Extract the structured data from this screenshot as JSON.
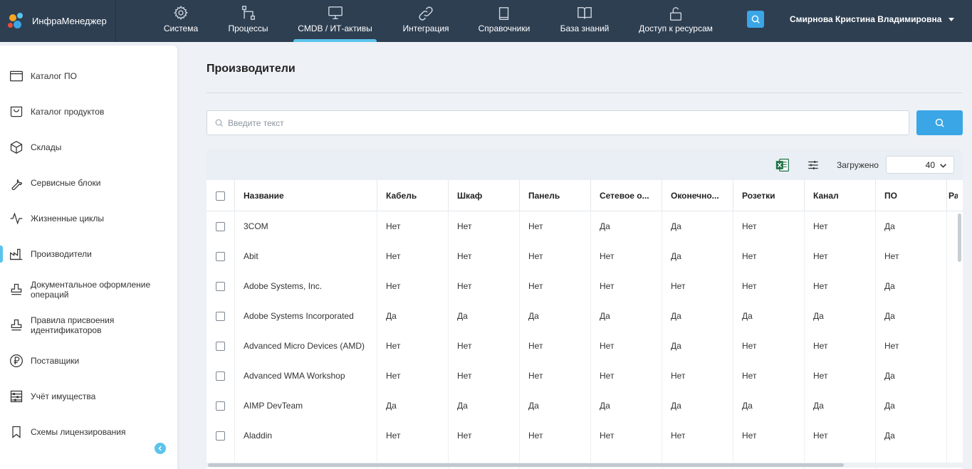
{
  "app": {
    "name": "ИнфраМенеджер"
  },
  "nav": {
    "items": [
      {
        "label": "Система",
        "icon": "gear-icon"
      },
      {
        "label": "Процессы",
        "icon": "process-icon"
      },
      {
        "label": "CMDB / ИТ-активы",
        "icon": "monitor-icon",
        "active": true
      },
      {
        "label": "Интеграция",
        "icon": "link-icon"
      },
      {
        "label": "Справочники",
        "icon": "book-icon"
      },
      {
        "label": "База знаний",
        "icon": "open-book-icon"
      },
      {
        "label": "Доступ к ресурсам",
        "icon": "unlock-icon"
      }
    ],
    "user": "Смирнова Кристина Владимировна"
  },
  "sidebar": {
    "items": [
      {
        "label": "Каталог ПО",
        "icon": "window-icon"
      },
      {
        "label": "Каталог продуктов",
        "icon": "basket-icon"
      },
      {
        "label": "Склады",
        "icon": "cube-icon"
      },
      {
        "label": "Сервисные блоки",
        "icon": "wrench-icon"
      },
      {
        "label": "Жизненные циклы",
        "icon": "pulse-icon"
      },
      {
        "label": "Производители",
        "icon": "factory-icon",
        "active": true
      },
      {
        "label": "Документальное оформление\nопераций",
        "icon": "stamp-icon"
      },
      {
        "label": "Правила присвоения\nидентификаторов",
        "icon": "stamp-icon"
      },
      {
        "label": "Поставщики",
        "icon": "ruble-icon"
      },
      {
        "label": "Учёт имущества",
        "icon": "abacus-icon"
      },
      {
        "label": "Схемы лицензирования",
        "icon": "bookmark-icon"
      }
    ]
  },
  "main": {
    "title": "Производители",
    "search": {
      "placeholder": "Введите текст",
      "value": ""
    },
    "toolbar": {
      "loaded_label": "Загружено",
      "loaded_value": "40"
    },
    "table": {
      "columns": [
        "Название",
        "Кабель",
        "Шкаф",
        "Панель",
        "Сетевое о...",
        "Оконечно...",
        "Розетки",
        "Канал",
        "ПО",
        "Ра"
      ],
      "rows": [
        [
          "3COM",
          "Нет",
          "Нет",
          "Нет",
          "Да",
          "Да",
          "Нет",
          "Нет",
          "Да"
        ],
        [
          "Abit",
          "Нет",
          "Нет",
          "Нет",
          "Нет",
          "Да",
          "Нет",
          "Нет",
          "Нет"
        ],
        [
          "Adobe Systems, Inc.",
          "Нет",
          "Нет",
          "Нет",
          "Нет",
          "Нет",
          "Нет",
          "Нет",
          "Да"
        ],
        [
          "Adobe Systems Incorporated",
          "Да",
          "Да",
          "Да",
          "Да",
          "Да",
          "Да",
          "Да",
          "Да"
        ],
        [
          "Advanced Micro Devices (AMD)",
          "Нет",
          "Нет",
          "Нет",
          "Нет",
          "Да",
          "Нет",
          "Нет",
          "Нет"
        ],
        [
          "Advanced WMA Workshop",
          "Нет",
          "Нет",
          "Нет",
          "Нет",
          "Нет",
          "Нет",
          "Нет",
          "Да"
        ],
        [
          "AIMP DevTeam",
          "Да",
          "Да",
          "Да",
          "Да",
          "Да",
          "Да",
          "Да",
          "Да"
        ],
        [
          "Aladdin",
          "Нет",
          "Нет",
          "Нет",
          "Нет",
          "Нет",
          "Нет",
          "Нет",
          "Да"
        ]
      ]
    }
  },
  "colors": {
    "topbar": "#2e3f52",
    "accent": "#5bc4ec",
    "button": "#3aa6e6",
    "excel": "#1e7145"
  }
}
